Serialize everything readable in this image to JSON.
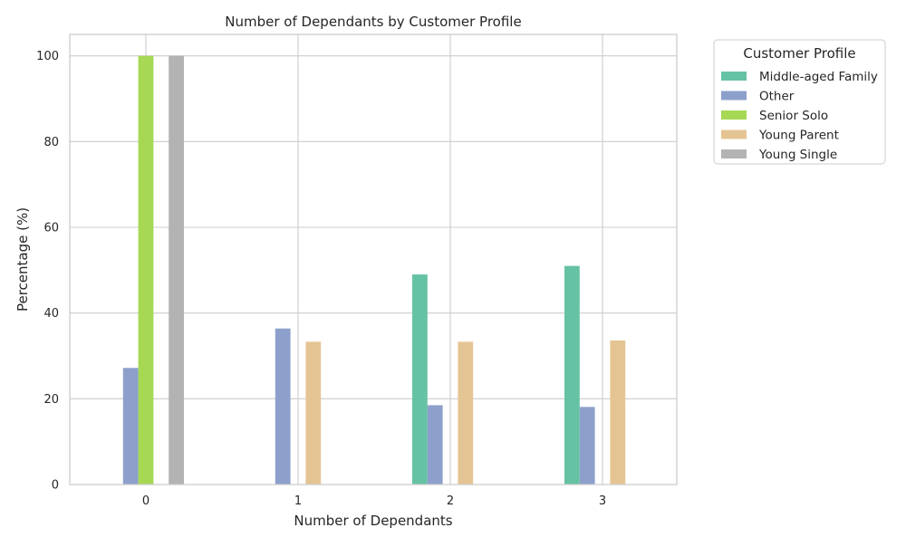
{
  "chart_data": {
    "type": "bar",
    "title": "Number of Dependants by Customer Profile",
    "xlabel": "Number of Dependants",
    "ylabel": "Percentage (%)",
    "categories": [
      "0",
      "1",
      "2",
      "3"
    ],
    "ylim": [
      0,
      105
    ],
    "yticks": [
      0,
      20,
      40,
      60,
      80,
      100
    ],
    "grid": true,
    "legend": {
      "title": "Customer Profile",
      "placement": "outside-top-right"
    },
    "series": [
      {
        "name": "Middle-aged Family",
        "color": "#66c2a5",
        "values": [
          0,
          0,
          49.0,
          51.0
        ]
      },
      {
        "name": "Other",
        "color": "#8da0cb",
        "values": [
          27.2,
          36.4,
          18.5,
          18.1
        ]
      },
      {
        "name": "Senior Solo",
        "color": "#a6d854",
        "values": [
          100,
          0,
          0,
          0
        ]
      },
      {
        "name": "Young Parent",
        "color": "#e5c494",
        "values": [
          0,
          33.3,
          33.3,
          33.6
        ]
      },
      {
        "name": "Young Single",
        "color": "#b3b3b3",
        "values": [
          100,
          0,
          0,
          0
        ]
      }
    ]
  }
}
